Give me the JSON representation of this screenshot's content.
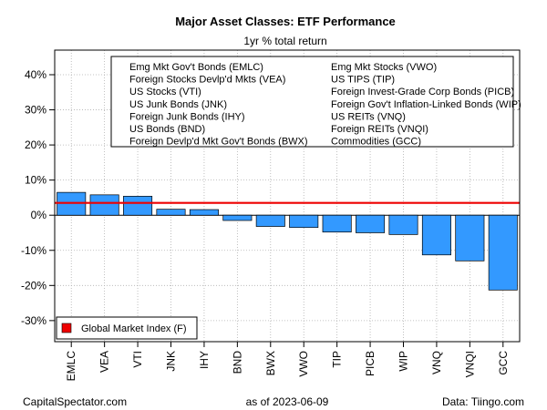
{
  "chart_data": {
    "type": "bar",
    "title": "Major Asset Classes: ETF Performance",
    "subtitle": "1yr % total return",
    "categories": [
      "EMLC",
      "VEA",
      "VTI",
      "JNK",
      "IHY",
      "BND",
      "BWX",
      "VWO",
      "TIP",
      "PICB",
      "WIP",
      "VNQ",
      "VNQI",
      "GCC"
    ],
    "values": [
      6.5,
      5.8,
      5.4,
      1.7,
      1.6,
      -1.5,
      -3.2,
      -3.5,
      -4.8,
      -5.0,
      -5.5,
      -11.3,
      -13.0,
      -21.3
    ],
    "ylim": [
      -36,
      47
    ],
    "yticks": [
      -30,
      -20,
      -10,
      0,
      10,
      20,
      30,
      40
    ],
    "ytick_labels": [
      "-30%",
      "-20%",
      "-10%",
      "0%",
      "10%",
      "20%",
      "30%",
      "40%"
    ],
    "bar_color": "#3399FF",
    "reference_line": {
      "value": 3.5,
      "color": "#EE0000"
    },
    "grid": true,
    "legend_top": {
      "col1": [
        "Emg Mkt Gov't Bonds (EMLC)",
        "Foreign Stocks Devlp'd Mkts (VEA)",
        "US Stocks (VTI)",
        "US Junk Bonds (JNK)",
        "Foreign Junk Bonds (IHY)",
        "US Bonds (BND)",
        "Foreign Devlp'd Mkt Gov't Bonds (BWX)"
      ],
      "col2": [
        "Emg Mkt Stocks (VWO)",
        "US TIPS (TIP)",
        "Foreign Invest-Grade Corp Bonds (PICB)",
        "Foreign Gov't Inflation-Linked Bonds (WIP)",
        "US REITs (VNQ)",
        "Foreign REITs (VNQI)",
        "Commodities (GCC)"
      ]
    },
    "legend_bottom": {
      "label": "Global Market Index (F)",
      "color": "#EE0000"
    }
  },
  "footer": {
    "left": "CapitalSpectator.com",
    "center": "as of   2023-06-09",
    "right": "Data: Tiingo.com"
  }
}
